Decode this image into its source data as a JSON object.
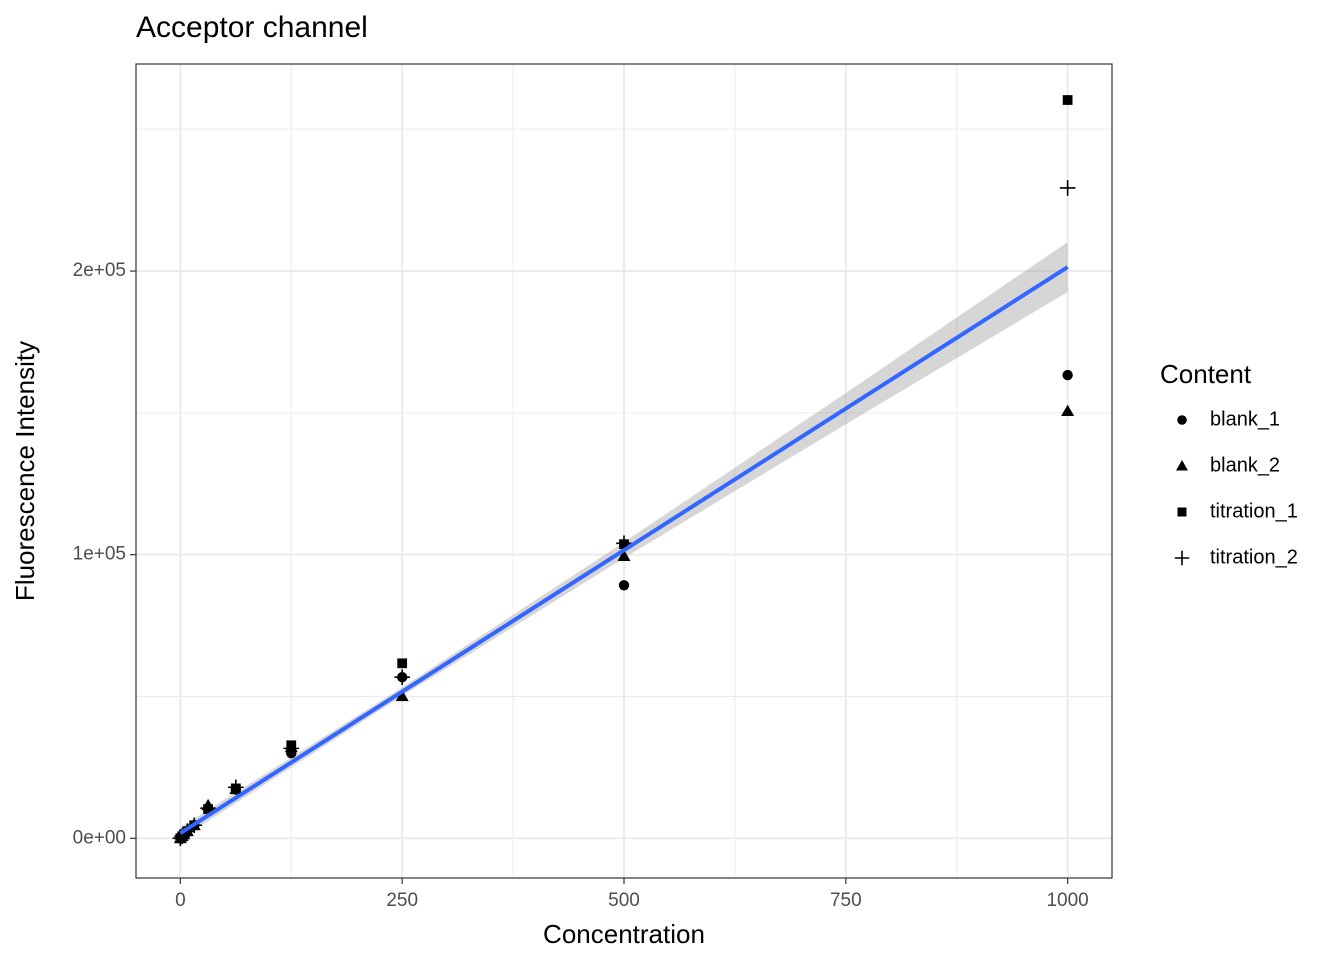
{
  "chart_data": {
    "type": "scatter",
    "title": "Acceptor channel",
    "x_label": "Concentration",
    "y_label": "Fluorescence Intensity",
    "legend_title": "Content",
    "legend_position": "right",
    "grid": true,
    "x": [
      0,
      1.95,
      3.9,
      7.8,
      15.6,
      31.25,
      62.5,
      125,
      250,
      500,
      1000
    ],
    "series": [
      {
        "name": "blank_1",
        "shape": "circle",
        "color": "#000000",
        "values": [
          0,
          700,
          1400,
          2500,
          4600,
          10600,
          17300,
          30000,
          56800,
          89200,
          163300
        ]
      },
      {
        "name": "blank_2",
        "shape": "triangle",
        "color": "#000000",
        "values": [
          0,
          700,
          1400,
          2500,
          4600,
          11600,
          17300,
          32100,
          50100,
          99500,
          150600
        ]
      },
      {
        "name": "titration_1",
        "shape": "square",
        "color": "#000000",
        "values": [
          0,
          700,
          1400,
          2500,
          4600,
          10300,
          17600,
          32800,
          61700,
          103700,
          260300
        ]
      },
      {
        "name": "titration_2",
        "shape": "plus",
        "color": "#000000",
        "values": [
          0,
          700,
          1400,
          2500,
          4600,
          10600,
          18000,
          31700,
          56800,
          104000,
          229300
        ]
      }
    ],
    "fit": {
      "color": "#3366ff",
      "band_color": "#999999",
      "x": [
        0,
        250,
        500,
        750,
        1000
      ],
      "y": [
        1800,
        51700,
        101600,
        151500,
        201400
      ],
      "lower": [
        -200,
        50200,
        98800,
        146000,
        192600
      ],
      "upper": [
        3800,
        53200,
        104400,
        157000,
        210200
      ]
    },
    "xlim": [
      -50,
      1050
    ],
    "xticks": [
      0,
      250,
      500,
      750,
      1000
    ],
    "x_minor_ticks": [
      125,
      375,
      625,
      875
    ],
    "ylim": [
      -14000,
      273000
    ],
    "yticks": [
      {
        "value": 0,
        "label": "0e+00"
      },
      {
        "value": 100000,
        "label": "1e+05"
      },
      {
        "value": 200000,
        "label": "2e+05"
      }
    ],
    "y_minor_ticks": [
      50000,
      150000,
      250000
    ]
  }
}
